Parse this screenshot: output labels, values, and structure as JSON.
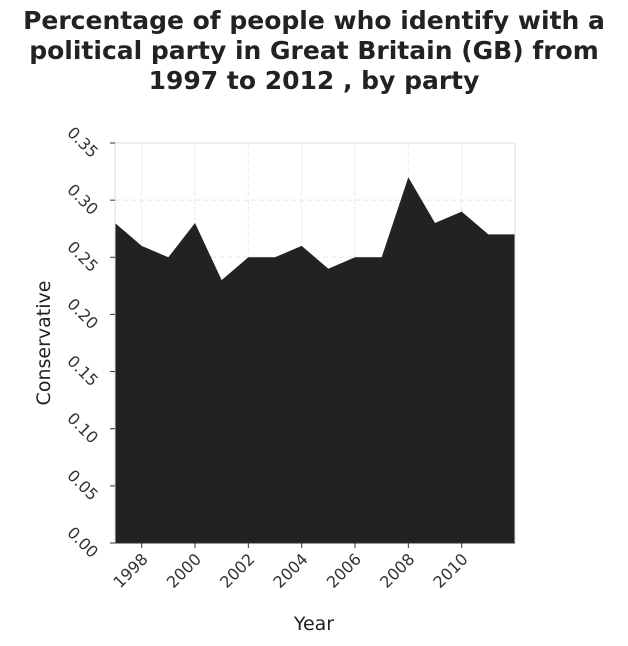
{
  "chart_data": {
    "type": "area",
    "title_lines": [
      "Percentage of people who identify with a",
      "political party in Great Britain (GB) from",
      "1997 to 2012 , by party"
    ],
    "xlabel": "Year",
    "ylabel": "Conservative",
    "x": [
      1997,
      1998,
      1999,
      2000,
      2001,
      2002,
      2003,
      2004,
      2005,
      2006,
      2007,
      2008,
      2009,
      2010,
      2011,
      2012
    ],
    "values": [
      0.28,
      0.26,
      0.25,
      0.28,
      0.23,
      0.25,
      0.25,
      0.26,
      0.24,
      0.25,
      0.25,
      0.32,
      0.28,
      0.29,
      0.27,
      0.27
    ],
    "xlim": [
      1997,
      2012
    ],
    "ylim": [
      0,
      0.35
    ],
    "x_ticks": [
      "1998",
      "2000",
      "2002",
      "2004",
      "2006",
      "2008",
      "2010"
    ],
    "y_ticks": [
      "0.00",
      "0.05",
      "0.10",
      "0.15",
      "0.20",
      "0.25",
      "0.30",
      "0.35"
    ],
    "grid": true,
    "colors": {
      "fill": "#222222",
      "grid": "#e6e6e6",
      "axis": "#333333"
    }
  }
}
